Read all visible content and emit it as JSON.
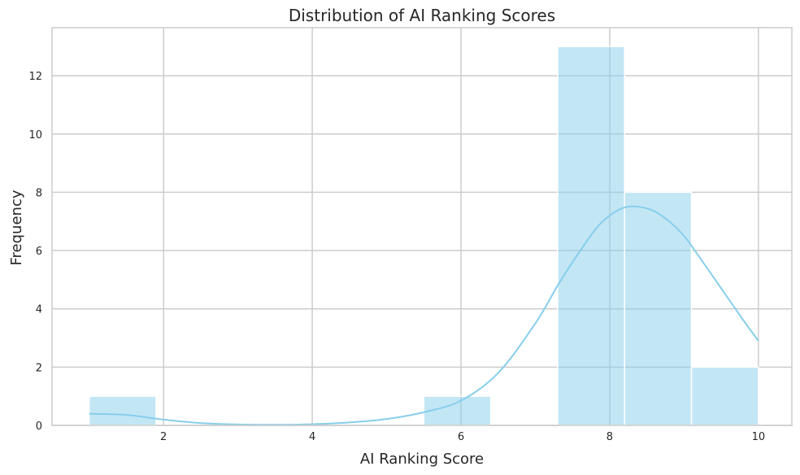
{
  "chart_data": {
    "type": "bar",
    "title": "Distribution of AI Ranking Scores",
    "xlabel": "AI Ranking Score",
    "ylabel": "Frequency",
    "xlim": [
      0.5,
      10.45
    ],
    "ylim": [
      0,
      13.65
    ],
    "xticks": [
      2,
      4,
      6,
      8,
      10
    ],
    "yticks": [
      0,
      2,
      4,
      6,
      8,
      10,
      12
    ],
    "grid": true,
    "bins": [
      {
        "x0": 1.0,
        "x1": 1.9,
        "count": 1
      },
      {
        "x0": 1.9,
        "x1": 2.8,
        "count": 0
      },
      {
        "x0": 2.8,
        "x1": 3.7,
        "count": 0
      },
      {
        "x0": 3.7,
        "x1": 4.6,
        "count": 0
      },
      {
        "x0": 4.6,
        "x1": 5.5,
        "count": 0
      },
      {
        "x0": 5.5,
        "x1": 6.4,
        "count": 1
      },
      {
        "x0": 6.4,
        "x1": 7.3,
        "count": 0
      },
      {
        "x0": 7.3,
        "x1": 8.2,
        "count": 13
      },
      {
        "x0": 8.2,
        "x1": 9.1,
        "count": 8
      },
      {
        "x0": 9.1,
        "x1": 10.0,
        "count": 2
      }
    ],
    "kde": {
      "x": [
        1.0,
        1.5,
        2.0,
        2.5,
        3.0,
        3.5,
        4.0,
        4.5,
        5.0,
        5.5,
        6.0,
        6.5,
        7.0,
        7.3,
        7.5,
        7.8,
        8.0,
        8.2,
        8.4,
        8.6,
        8.8,
        9.0,
        9.2,
        9.5,
        9.8,
        10.0
      ],
      "y": [
        0.4,
        0.36,
        0.2,
        0.08,
        0.03,
        0.02,
        0.04,
        0.1,
        0.22,
        0.45,
        0.85,
        1.8,
        3.5,
        4.8,
        5.6,
        6.7,
        7.2,
        7.48,
        7.5,
        7.35,
        7.0,
        6.5,
        5.8,
        4.7,
        3.6,
        2.9
      ]
    },
    "colors": {
      "bar_fill": "#87ceeb",
      "kde_line": "#87ceeb",
      "grid": "#cccccc",
      "spine": "#cccccc",
      "text": "#262626"
    }
  }
}
